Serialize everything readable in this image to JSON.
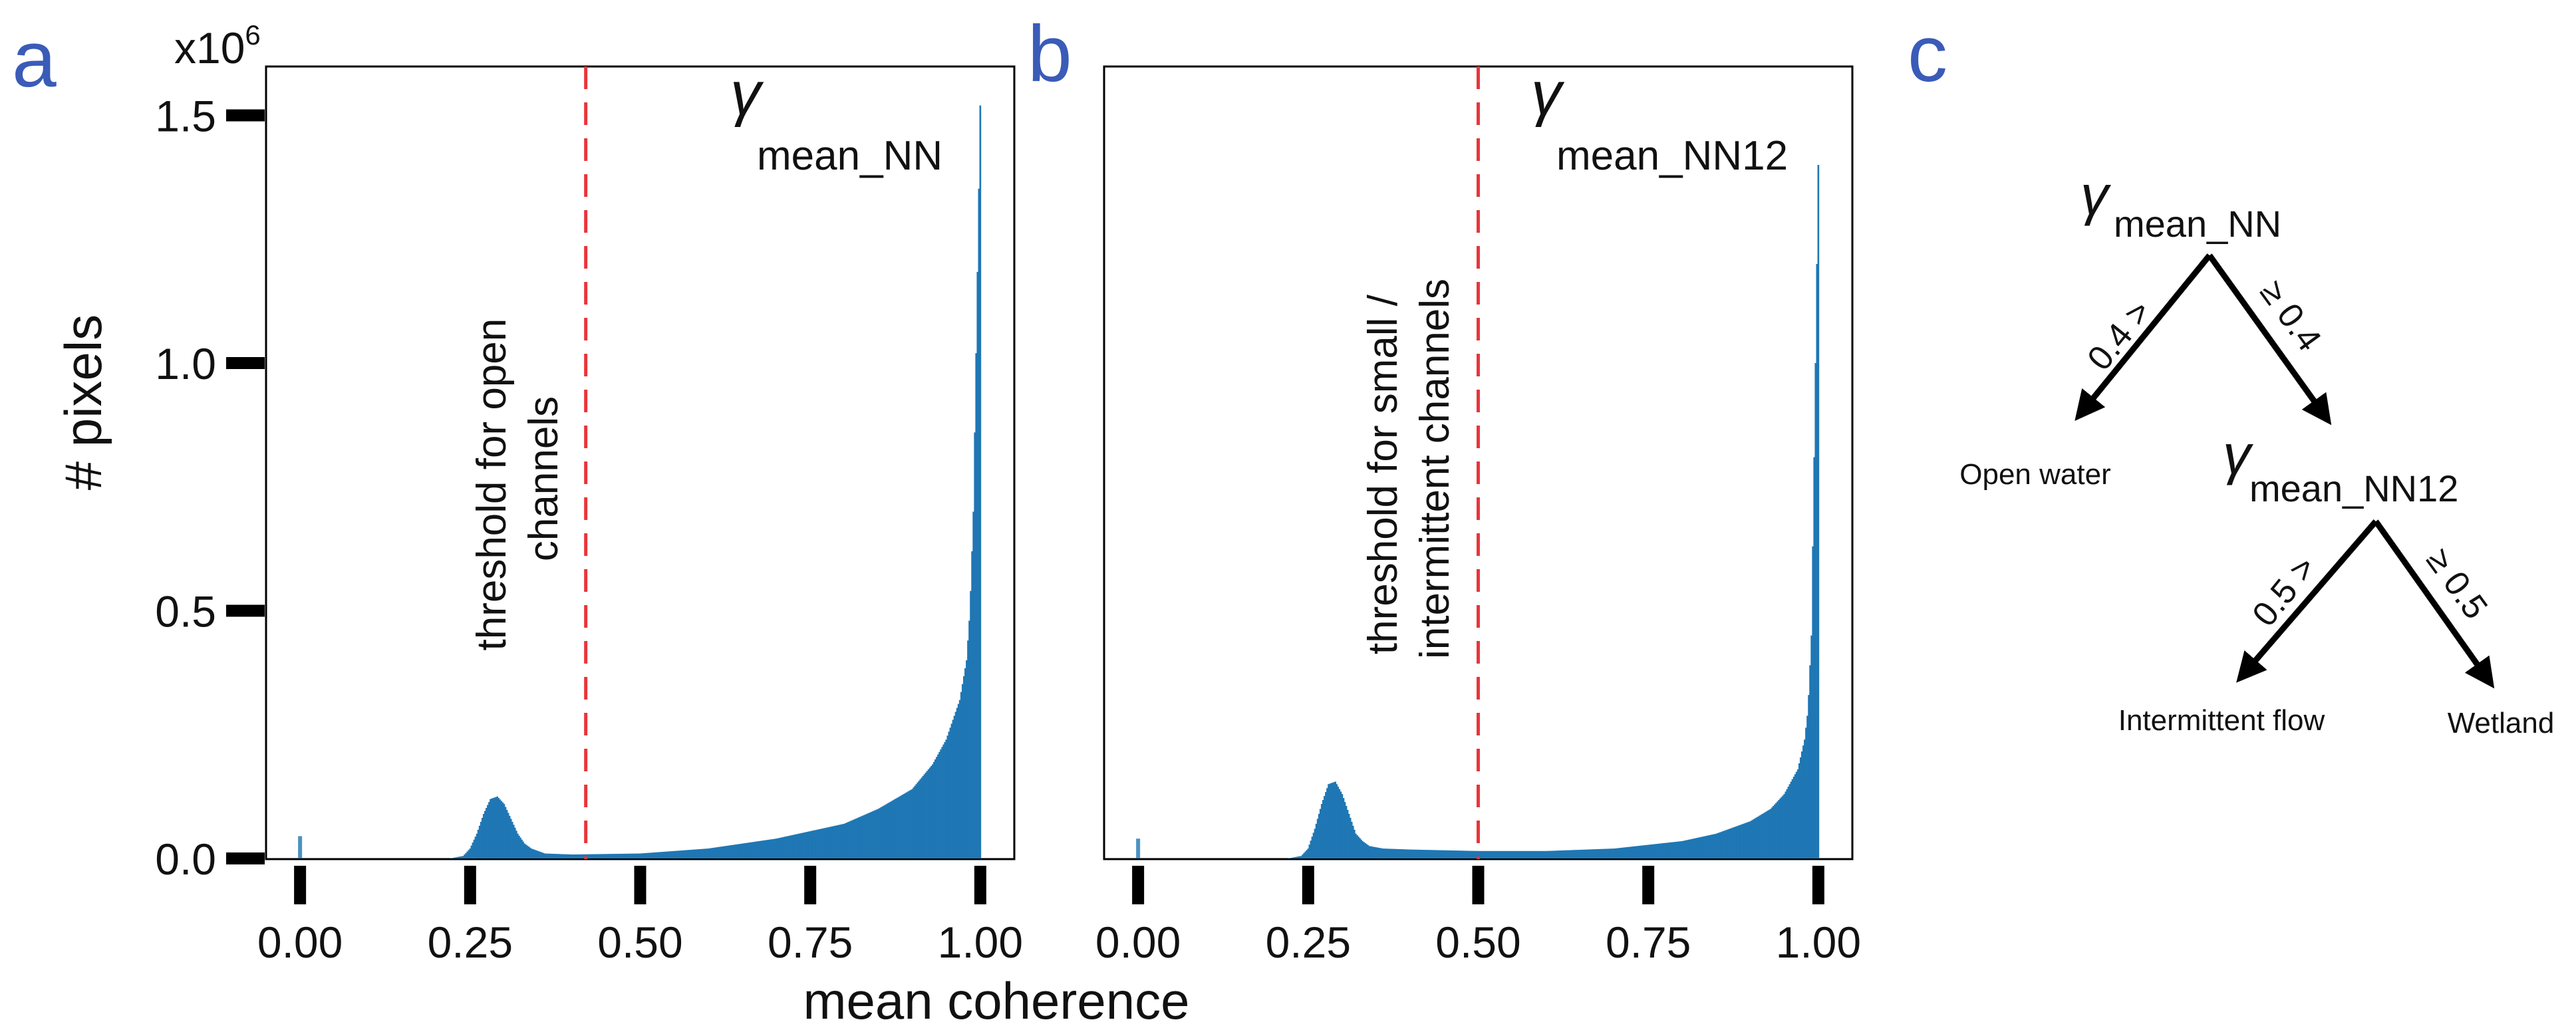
{
  "colors": {
    "bars": "#1f77b4",
    "threshold": "#e8353a",
    "panel_letter": "#3a5bb8",
    "axis": "#000000"
  },
  "figure": {
    "y_axis_title": "# pixels",
    "y_multiplier_base": "x10",
    "y_multiplier_exp": "6",
    "x_axis_title": "mean coherence"
  },
  "chart_data": [
    {
      "panel": "a",
      "type": "bar",
      "title_symbol": "γ",
      "title_subscript": "mean_NN",
      "xlabel": "mean coherence",
      "ylabel": "# pixels",
      "y_unit": "x10^6",
      "xlim": [
        -0.05,
        1.05
      ],
      "ylim": [
        0,
        1.6
      ],
      "xticks": [
        "0.00",
        "0.25",
        "0.50",
        "0.75",
        "1.00"
      ],
      "yticks": [
        "0.0",
        "0.5",
        "1.0",
        "1.5"
      ],
      "threshold": 0.42,
      "threshold_label_line1": "threshold for open",
      "threshold_label_line2": "channels",
      "spike": {
        "x": 0.0,
        "y": 0.045
      },
      "x": [
        0.22,
        0.24,
        0.25,
        0.26,
        0.27,
        0.28,
        0.29,
        0.3,
        0.31,
        0.32,
        0.33,
        0.34,
        0.36,
        0.4,
        0.5,
        0.6,
        0.7,
        0.8,
        0.85,
        0.9,
        0.93,
        0.95,
        0.97,
        0.98,
        0.985,
        0.99,
        0.995,
        1.0
      ],
      "values": [
        0.0,
        0.005,
        0.02,
        0.05,
        0.09,
        0.12,
        0.125,
        0.11,
        0.08,
        0.05,
        0.03,
        0.02,
        0.01,
        0.008,
        0.01,
        0.02,
        0.04,
        0.07,
        0.1,
        0.14,
        0.19,
        0.24,
        0.32,
        0.4,
        0.5,
        0.7,
        1.1,
        1.52
      ]
    },
    {
      "panel": "b",
      "type": "bar",
      "title_symbol": "γ",
      "title_subscript": "mean_NN12",
      "xlabel": "mean coherence",
      "ylabel": "# pixels",
      "y_unit": "x10^6",
      "xlim": [
        -0.05,
        1.05
      ],
      "ylim": [
        0,
        1.6
      ],
      "xticks": [
        "0.00",
        "0.25",
        "0.50",
        "0.75",
        "1.00"
      ],
      "yticks": [
        "0.0",
        "0.5",
        "1.0",
        "1.5"
      ],
      "threshold": 0.5,
      "threshold_label_line1": "threshold for small /",
      "threshold_label_line2": "intermittent channels",
      "spike": {
        "x": 0.0,
        "y": 0.04
      },
      "x": [
        0.22,
        0.24,
        0.25,
        0.26,
        0.27,
        0.28,
        0.29,
        0.3,
        0.31,
        0.32,
        0.33,
        0.34,
        0.36,
        0.4,
        0.5,
        0.6,
        0.7,
        0.8,
        0.85,
        0.9,
        0.93,
        0.95,
        0.97,
        0.98,
        0.985,
        0.99,
        0.995,
        1.0
      ],
      "values": [
        0.0,
        0.005,
        0.02,
        0.06,
        0.11,
        0.15,
        0.155,
        0.13,
        0.09,
        0.05,
        0.035,
        0.025,
        0.02,
        0.018,
        0.015,
        0.015,
        0.02,
        0.035,
        0.05,
        0.075,
        0.1,
        0.13,
        0.18,
        0.24,
        0.3,
        0.45,
        0.9,
        1.4
      ]
    }
  ],
  "decision_tree": {
    "panel": "c",
    "root": {
      "symbol": "γ",
      "subscript": "mean_NN"
    },
    "root_left_edge": "0.4 >",
    "root_right_edge": "≥ 0.4",
    "left_leaf": "Open water",
    "child": {
      "symbol": "γ",
      "subscript": "mean_NN12"
    },
    "child_left_edge": "0.5 >",
    "child_right_edge": "≥ 0.5",
    "child_left_leaf": "Intermittent flow",
    "child_right_leaf": "Wetland"
  }
}
